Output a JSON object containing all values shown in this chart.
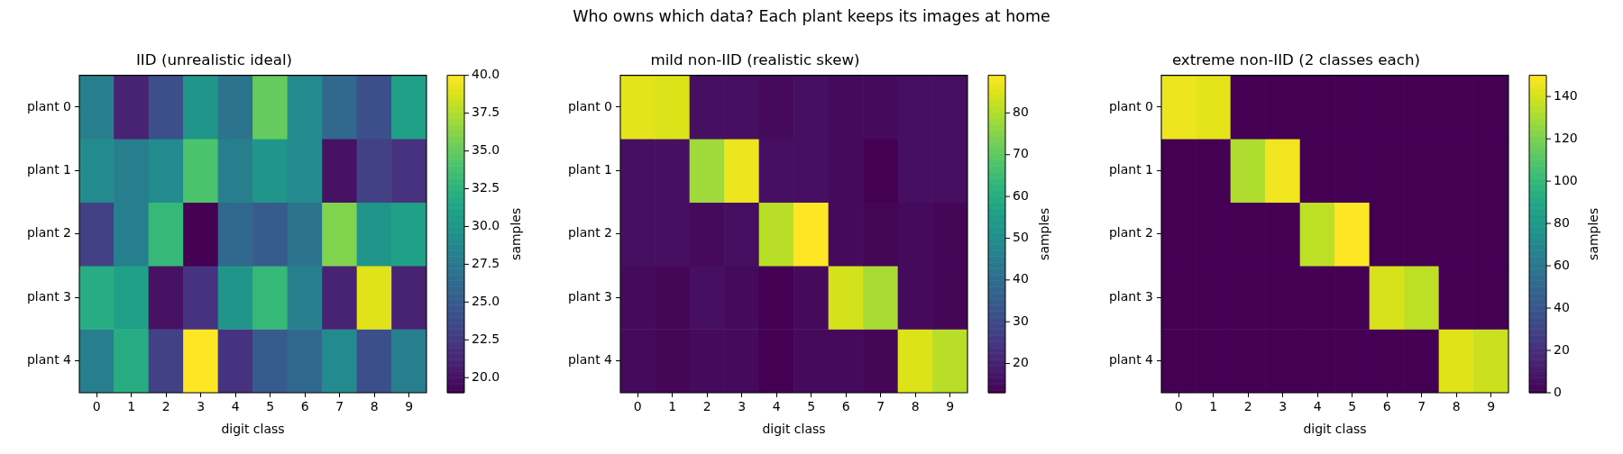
{
  "chart_data": [
    {
      "type": "heatmap",
      "title": "IID (unrealistic ideal)",
      "xlabel": "digit class",
      "clabel": "samples",
      "annotations": [
        "Who owns which data? Each plant keeps its images at home"
      ],
      "categories": [
        "0",
        "1",
        "2",
        "3",
        "4",
        "5",
        "6",
        "7",
        "8",
        "9"
      ],
      "y_categories": [
        "plant 0",
        "plant 1",
        "plant 2",
        "plant 3",
        "plant 4"
      ],
      "cells": [
        [
          28,
          21,
          24,
          30,
          27,
          35,
          29,
          26,
          24,
          31
        ],
        [
          29,
          28,
          29,
          34,
          28,
          30,
          29,
          20,
          23,
          22
        ],
        [
          23,
          28,
          33,
          19,
          26,
          25,
          27,
          36,
          30,
          31
        ],
        [
          32,
          31,
          20,
          22,
          30,
          33,
          28,
          21,
          39,
          21
        ],
        [
          28,
          32,
          23,
          40,
          22,
          25,
          26,
          29,
          24,
          28
        ]
      ],
      "clim": [
        19,
        40
      ],
      "cticks": [
        {
          "value": 20,
          "label": "20.0"
        },
        22.5,
        {
          "value": 25,
          "label": "25.0"
        },
        27.5,
        {
          "value": 30,
          "label": "30.0"
        },
        32.5,
        {
          "value": 35,
          "label": "35.0"
        },
        37.5,
        {
          "value": 40,
          "label": "40.0"
        }
      ]
    },
    {
      "type": "heatmap",
      "title": "mild non-IID (realistic skew)",
      "xlabel": "digit class",
      "clabel": "samples",
      "categories": [
        "0",
        "1",
        "2",
        "3",
        "4",
        "5",
        "6",
        "7",
        "8",
        "9"
      ],
      "y_categories": [
        "plant 0",
        "plant 1",
        "plant 2",
        "plant 3",
        "plant 4"
      ],
      "cells": [
        [
          86,
          85,
          16,
          16,
          15,
          16,
          15,
          15,
          16,
          16
        ],
        [
          16,
          16,
          78,
          87,
          16,
          16,
          15,
          13,
          16,
          16
        ],
        [
          16,
          16,
          15,
          16,
          81,
          89,
          15,
          14,
          15,
          14
        ],
        [
          15,
          14,
          16,
          15,
          13,
          15,
          84,
          79,
          15,
          14
        ],
        [
          15,
          14,
          15,
          15,
          13,
          15,
          15,
          14,
          85,
          81
        ]
      ],
      "clim": [
        13,
        89
      ],
      "cticks": [
        20,
        30,
        40,
        50,
        60,
        70,
        80
      ]
    },
    {
      "type": "heatmap",
      "title": "extreme non-IID (2 classes each)",
      "xlabel": "digit class",
      "clabel": "samples",
      "categories": [
        "0",
        "1",
        "2",
        "3",
        "4",
        "5",
        "6",
        "7",
        "8",
        "9"
      ],
      "y_categories": [
        "plant 0",
        "plant 1",
        "plant 2",
        "plant 3",
        "plant 4"
      ],
      "cells": [
        [
          146,
          144,
          0,
          0,
          0,
          0,
          0,
          0,
          0,
          0
        ],
        [
          0,
          0,
          132,
          147,
          0,
          0,
          0,
          0,
          0,
          0
        ],
        [
          0,
          0,
          0,
          0,
          135,
          150,
          0,
          0,
          0,
          0
        ],
        [
          0,
          0,
          0,
          0,
          0,
          0,
          141,
          135,
          0,
          0
        ],
        [
          0,
          0,
          0,
          0,
          0,
          0,
          0,
          0,
          143,
          138
        ]
      ],
      "clim": [
        0,
        150
      ],
      "cticks": [
        0,
        20,
        40,
        60,
        80,
        100,
        120,
        140
      ]
    }
  ]
}
